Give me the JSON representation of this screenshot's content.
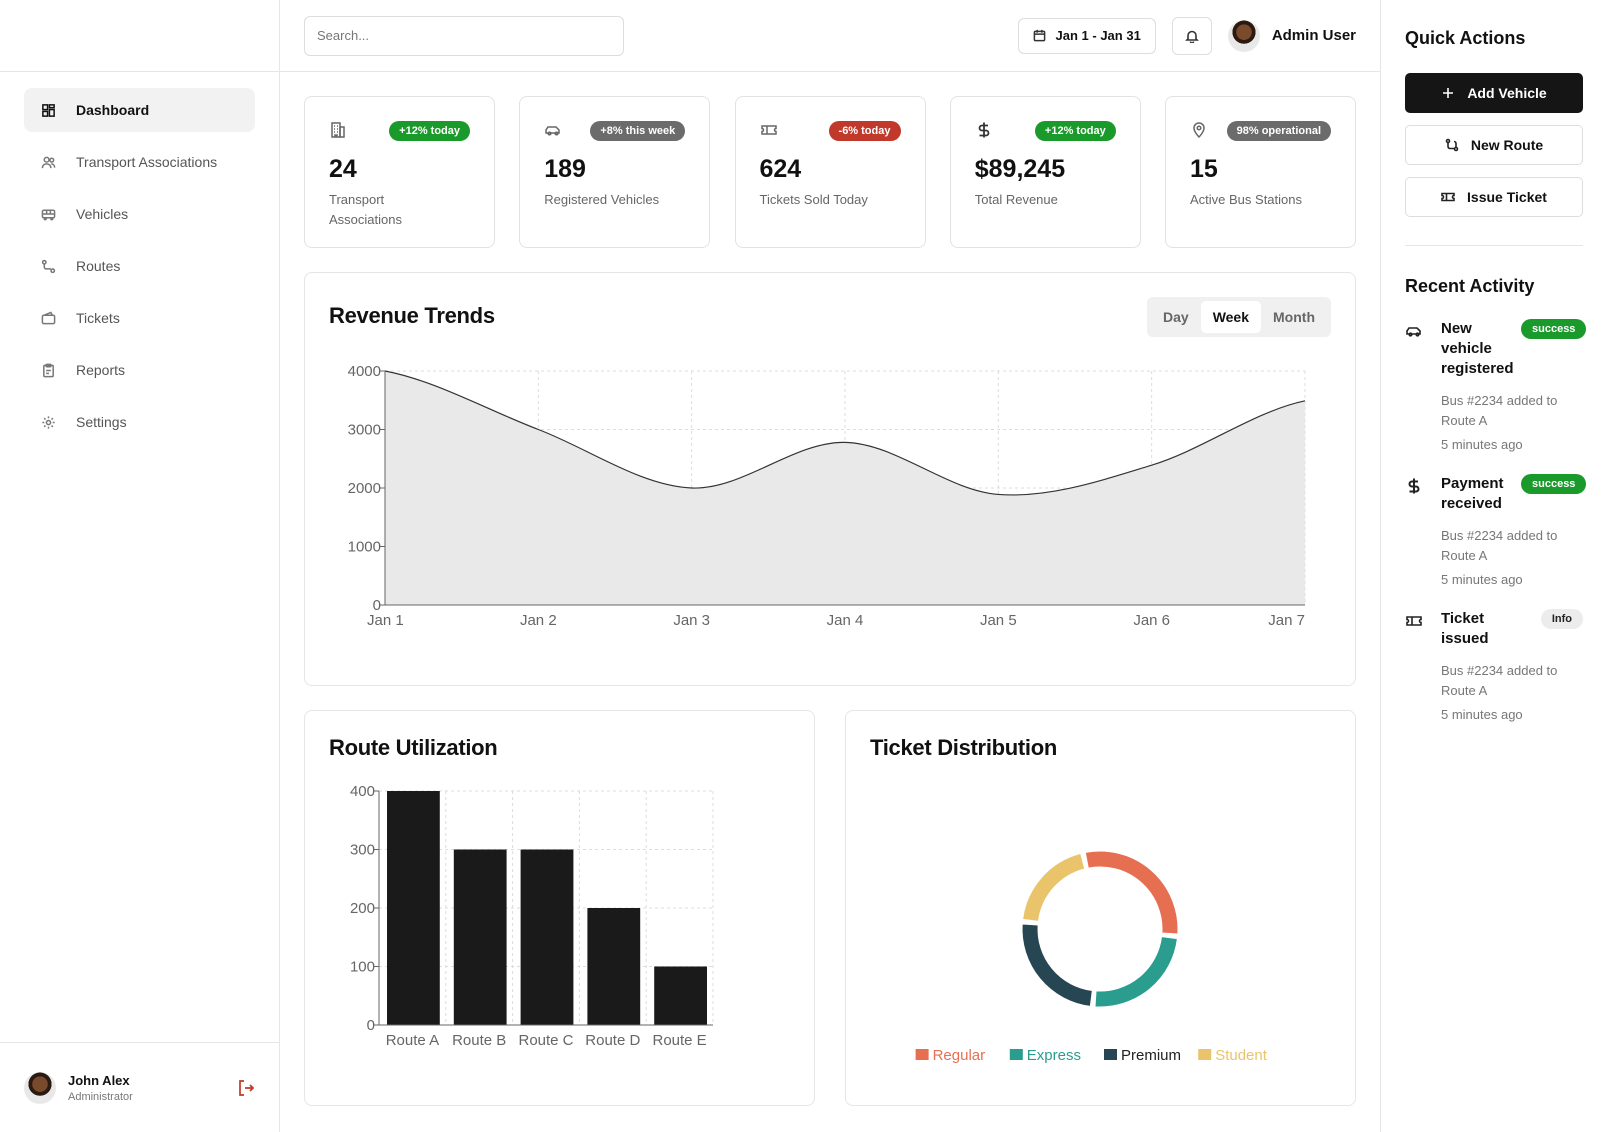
{
  "sidebar": {
    "items": [
      {
        "label": "Dashboard",
        "icon": "grid-icon",
        "active": true
      },
      {
        "label": "Transport Associations",
        "icon": "users-icon"
      },
      {
        "label": "Vehicles",
        "icon": "bus-icon"
      },
      {
        "label": "Routes",
        "icon": "route-icon"
      },
      {
        "label": "Tickets",
        "icon": "wallet-icon"
      },
      {
        "label": "Reports",
        "icon": "clipboard-icon"
      },
      {
        "label": "Settings",
        "icon": "gear-icon"
      }
    ],
    "user": {
      "name": "John Alex",
      "role": "Administrator"
    }
  },
  "header": {
    "search_placeholder": "Search...",
    "date_range": "Jan 1 - Jan 31",
    "user_name": "Admin User"
  },
  "stats": [
    {
      "value": "24",
      "label": "Transport Associations",
      "badge": "+12% today",
      "badge_color": "#1a9a2a",
      "icon": "building-icon"
    },
    {
      "value": "189",
      "label": "Registered Vehicles",
      "badge": "+8% this week",
      "badge_color": "#6b6b6b",
      "icon": "car-icon"
    },
    {
      "value": "624",
      "label": "Tickets Sold Today",
      "badge": "-6% today",
      "badge_color": "#c0392b",
      "icon": "ticket-icon"
    },
    {
      "value": "$89,245",
      "label": "Total Revenue",
      "badge": "+12% today",
      "badge_color": "#1a9a2a",
      "icon": "dollar-icon"
    },
    {
      "value": "15",
      "label": "Active Bus Stations",
      "badge": "98% operational",
      "badge_color": "#6b6b6b",
      "icon": "map-pin-icon"
    }
  ],
  "revenue": {
    "title": "Revenue Trends",
    "tabs": [
      "Day",
      "Week",
      "Month"
    ],
    "active_tab": "Week"
  },
  "route_util": {
    "title": "Route Utilization"
  },
  "ticket_dist": {
    "title": "Ticket Distribution"
  },
  "chart_data": [
    {
      "type": "area",
      "title": "Revenue Trends",
      "x": [
        "Jan 1",
        "Jan 2",
        "Jan 3",
        "Jan 4",
        "Jan 5",
        "Jan 6",
        "Jan 7"
      ],
      "values": [
        4000,
        3000,
        2000,
        2780,
        1890,
        2390,
        3490
      ],
      "yticks": [
        0,
        1000,
        2000,
        3000,
        4000
      ],
      "ylim": [
        0,
        4000
      ],
      "grid": true,
      "color": "#e8e8e8",
      "line_color": "#333333"
    },
    {
      "type": "bar",
      "title": "Route Utilization",
      "categories": [
        "Route A",
        "Route B",
        "Route C",
        "Route D",
        "Route E"
      ],
      "values": [
        400,
        300,
        300,
        200,
        100
      ],
      "yticks": [
        0,
        100,
        200,
        300,
        400
      ],
      "ylim": [
        0,
        400
      ],
      "grid": true,
      "color": "#1a1a1a"
    },
    {
      "type": "pie",
      "title": "Ticket Distribution",
      "categories": [
        "Regular",
        "Express",
        "Premium",
        "Student"
      ],
      "values": [
        30,
        25,
        25,
        20
      ],
      "colors": [
        "#e76f51",
        "#2a9d8f",
        "#264653",
        "#e9c46a"
      ],
      "legend": "bottom"
    }
  ],
  "quick_actions": {
    "title": "Quick Actions",
    "buttons": [
      {
        "label": "Add Vehicle",
        "icon": "plus-icon",
        "primary": true
      },
      {
        "label": "New Route",
        "icon": "route-icon"
      },
      {
        "label": "Issue Ticket",
        "icon": "ticket-icon"
      }
    ]
  },
  "recent_activity": {
    "title": "Recent Activity",
    "items": [
      {
        "title": "New vehicle registered",
        "status": "success",
        "desc": "Bus #2234 added to Route A",
        "time": "5 minutes ago",
        "icon": "car-icon"
      },
      {
        "title": "Payment received",
        "status": "success",
        "desc": "Bus #2234 added to Route A",
        "time": "5 minutes ago",
        "icon": "dollar-icon"
      },
      {
        "title": "Ticket issued",
        "status": "Info",
        "desc": "Bus #2234 added to Route A",
        "time": "5 minutes ago",
        "icon": "ticket-icon"
      }
    ]
  }
}
